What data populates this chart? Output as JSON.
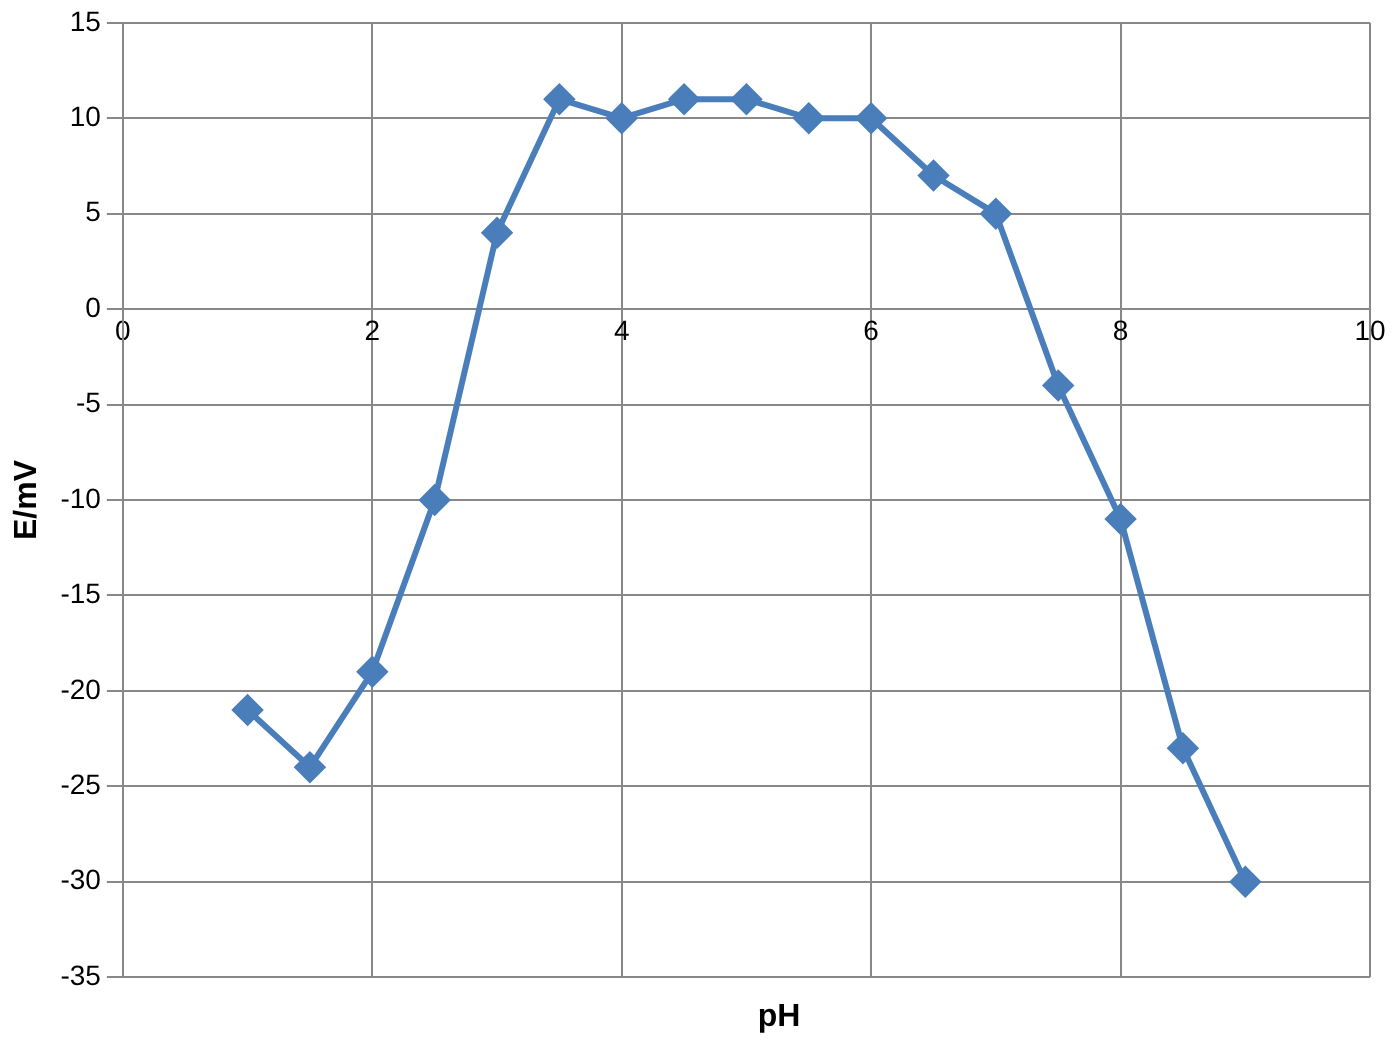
{
  "chart_data": {
    "type": "line",
    "xlabel": "pH",
    "ylabel": "E/mV",
    "x": [
      1,
      1.5,
      2,
      2.5,
      3,
      3.5,
      4,
      4.5,
      5,
      5.5,
      6,
      6.5,
      7,
      7.5,
      8,
      8.5,
      9
    ],
    "series": [
      {
        "color": "#4a7ebb",
        "values": [
          -21,
          -24,
          -19,
          -10,
          4,
          11,
          10,
          11,
          11,
          10,
          10,
          7,
          5,
          -4,
          -11,
          -23,
          -30
        ]
      }
    ],
    "xlim": [
      0,
      10
    ],
    "xticks": [
      0,
      2,
      4,
      6,
      8,
      10
    ],
    "ylim": [
      -35,
      15
    ],
    "yticks": [
      -35,
      -30,
      -25,
      -20,
      -15,
      -10,
      -5,
      0,
      5,
      10,
      15
    ],
    "grid": true,
    "legend": false,
    "marker": "diamond",
    "line_style": "solid"
  }
}
